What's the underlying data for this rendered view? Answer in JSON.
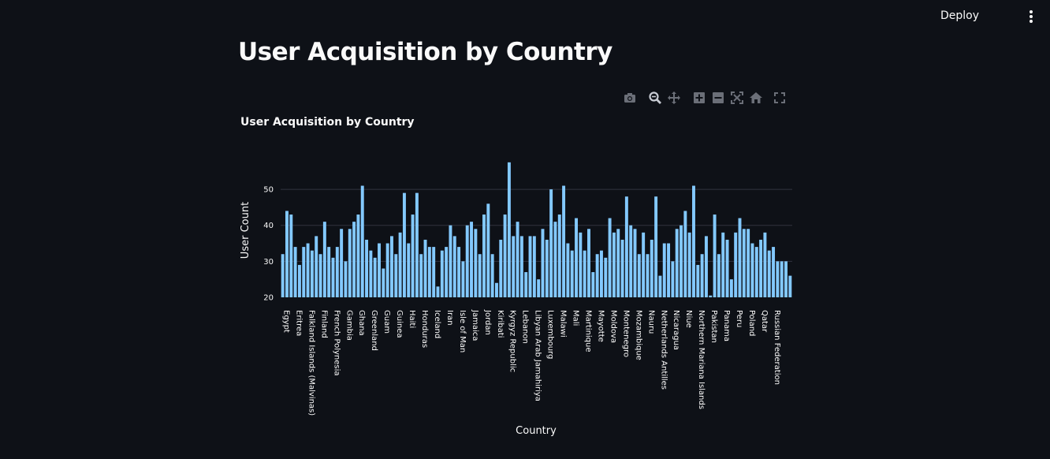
{
  "header": {
    "deploy_label": "Deploy"
  },
  "page": {
    "title": "User Acquisition by Country"
  },
  "toolbar": {
    "icons": [
      "camera-icon",
      "zoom-icon",
      "pan-icon",
      "zoom-in-icon",
      "zoom-out-icon",
      "autoscale-icon",
      "reset-axes-icon",
      "fullscreen-icon"
    ]
  },
  "chart_data": {
    "type": "bar",
    "title": "User Acquisition by Country",
    "xlabel": "Country",
    "ylabel": "User Count",
    "ylim": [
      20,
      59
    ],
    "yticks": [
      20,
      30,
      40,
      50
    ],
    "grid": true,
    "bar_color": "#83c9ff",
    "tick_labels": [
      "Egypt",
      "Eritrea",
      "Falkland Islands (Malvinas)",
      "Finland",
      "French Polynesia",
      "Gambia",
      "Ghana",
      "Greenland",
      "Guam",
      "Guinea",
      "Haiti",
      "Honduras",
      "Iceland",
      "Iran",
      "Isle of Man",
      "Jamaica",
      "Jordan",
      "Kiribati",
      "Kyrgyz Republic",
      "Lebanon",
      "Libyan Arab Jamahiriya",
      "Luxembourg",
      "Malawi",
      "Mali",
      "Martinique",
      "Mayotte",
      "Moldova",
      "Montenegro",
      "Mozambique",
      "Nauru",
      "Netherlands Antilles",
      "Nicaragua",
      "Niue",
      "Northern Mariana Islands",
      "Pakistan",
      "Panama",
      "Peru",
      "Poland",
      "Qatar",
      "Russian Federation"
    ],
    "values": [
      32,
      44,
      43,
      34,
      29,
      34,
      35,
      33,
      37,
      32,
      41,
      34,
      31,
      34,
      39,
      30,
      39,
      41,
      43,
      51,
      36,
      33,
      31,
      35,
      28,
      35,
      37,
      32,
      38,
      49,
      35,
      43,
      49,
      32,
      36,
      34,
      34,
      23,
      33,
      34,
      40,
      37,
      34,
      30,
      40,
      41,
      39,
      32,
      43,
      46,
      32,
      24,
      36,
      43,
      57.5,
      37,
      41,
      37,
      27,
      37,
      37,
      25,
      39,
      36,
      50,
      41,
      43,
      51,
      35,
      33,
      42,
      38,
      33,
      39,
      27,
      32,
      33,
      31,
      42,
      38,
      39,
      36,
      48,
      40,
      39,
      32,
      38,
      32,
      36,
      48,
      26,
      35,
      35,
      30,
      39,
      40,
      44,
      38,
      51,
      29,
      32,
      37,
      20.5,
      43,
      32,
      38,
      36,
      25,
      38,
      42,
      39,
      39,
      35,
      34,
      36,
      38,
      33,
      34,
      30,
      30,
      30,
      26
    ]
  }
}
